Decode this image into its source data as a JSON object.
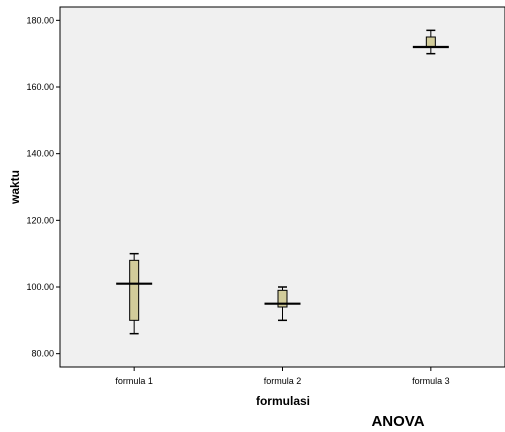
{
  "chart_data": {
    "type": "box",
    "xlabel": "formulasi",
    "ylabel": "waktu",
    "ylim": [
      76,
      184
    ],
    "yticks": [
      "80.00",
      "100.00",
      "120.00",
      "140.00",
      "160.00",
      "180.00"
    ],
    "categories": [
      "formula 1",
      "formula 2",
      "formula 3"
    ],
    "boxes": [
      {
        "category": "formula 1",
        "min": 86,
        "q1": 90,
        "median": 101,
        "q3": 108,
        "max": 110
      },
      {
        "category": "formula 2",
        "min": 90,
        "q1": 94,
        "median": 95,
        "q3": 99,
        "max": 100
      },
      {
        "category": "formula 3",
        "min": 170,
        "q1": 172,
        "median": 172,
        "q3": 175,
        "max": 177
      }
    ],
    "grid": false,
    "plot_background": "#f0f0f0",
    "box_fill": "#d2cc9a"
  },
  "caption": "ANOVA"
}
